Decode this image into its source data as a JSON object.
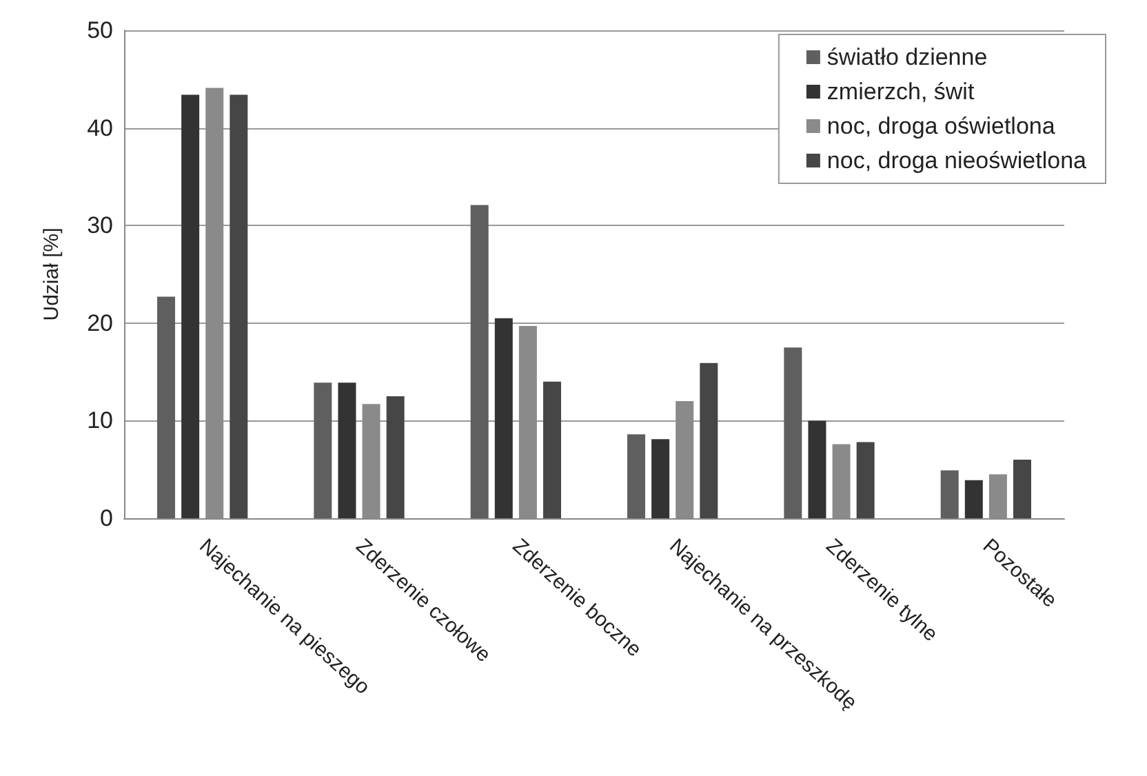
{
  "chart_data": {
    "type": "bar",
    "ylabel": "Udział [%]",
    "categories": [
      "Najechanie na pieszego",
      "Zderzenie czołowe",
      "Zderzenie boczne",
      "Najechanie na przeszkodę",
      "Zderzenie tylne",
      "Pozostałe"
    ],
    "series": [
      {
        "name": "światło dzienne",
        "color": "#5f5f5f",
        "values": [
          22.7,
          13.9,
          32.1,
          8.6,
          17.5,
          4.9
        ]
      },
      {
        "name": "zmierzch, świt",
        "color": "#333333",
        "values": [
          43.4,
          13.9,
          20.5,
          8.1,
          10.0,
          3.9
        ]
      },
      {
        "name": "noc, droga oświetlona",
        "color": "#8a8a8a",
        "values": [
          44.1,
          11.7,
          19.7,
          12.0,
          7.6,
          4.5
        ]
      },
      {
        "name": "noc, droga nieoświetlona",
        "color": "#464646",
        "values": [
          43.4,
          12.5,
          14.0,
          15.9,
          7.8,
          6.0
        ]
      }
    ],
    "ylim": [
      0,
      50
    ],
    "yticks": [
      0,
      10,
      20,
      30,
      40,
      50
    ],
    "grid": "y",
    "legend": "top right"
  }
}
